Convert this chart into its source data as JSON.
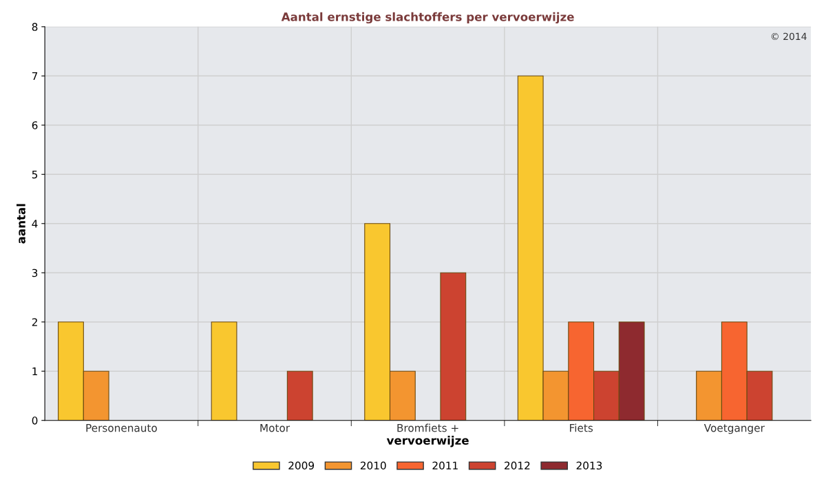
{
  "chart_data": {
    "type": "bar",
    "title": "Aantal ernstige slachtoffers per vervoerwijze",
    "xlabel": "vervoerwijze",
    "ylabel": "aantal",
    "categories": [
      "Personenauto",
      "Motor",
      "Bromfiets +",
      "Fiets",
      "Voetganger"
    ],
    "series": [
      {
        "name": "2009",
        "color": "#f9c72f",
        "values": [
          2,
          2,
          4,
          7,
          0
        ]
      },
      {
        "name": "2010",
        "color": "#f39530",
        "values": [
          1,
          0,
          1,
          1,
          1
        ]
      },
      {
        "name": "2011",
        "color": "#f76530",
        "values": [
          0,
          0,
          0,
          2,
          2
        ]
      },
      {
        "name": "2012",
        "color": "#cc4330",
        "values": [
          0,
          1,
          3,
          1,
          1
        ]
      },
      {
        "name": "2013",
        "color": "#8e2a2f",
        "values": [
          0,
          0,
          0,
          2,
          0
        ]
      }
    ],
    "ylim": [
      0,
      8
    ],
    "yticks": [
      0,
      1,
      2,
      3,
      4,
      5,
      6,
      7,
      8
    ],
    "grid": true,
    "legend": "bottom",
    "annotations": [
      "© 2014"
    ]
  }
}
